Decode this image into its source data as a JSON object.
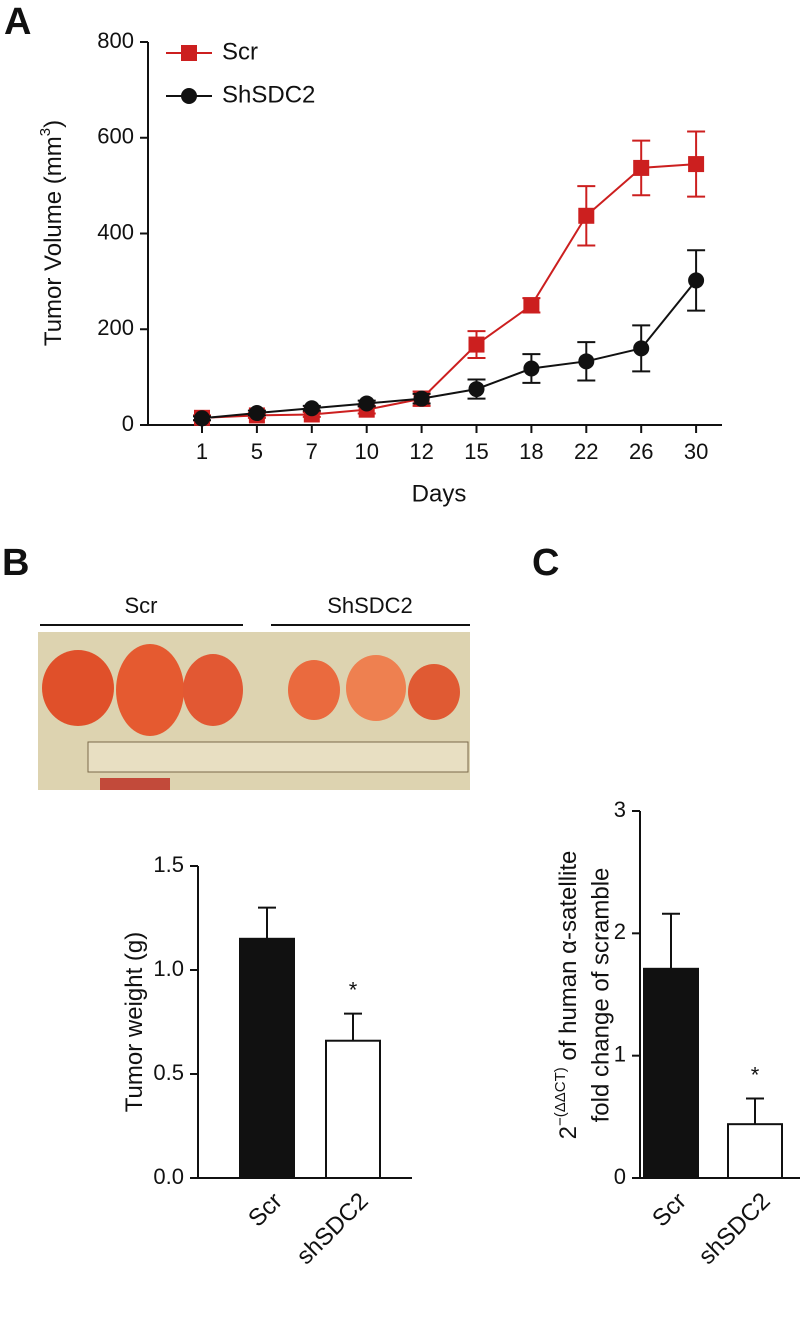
{
  "panel_labels": [
    "A",
    "B",
    "C"
  ],
  "photo": {
    "labels": [
      "Scr",
      "ShSDC2"
    ]
  },
  "chart_data": [
    {
      "type": "line",
      "ylabel": [
        "Tumor Volume (mm",
        "3",
        ")"
      ],
      "xlabel": "Days",
      "categories": [
        "1",
        "5",
        "7",
        "10",
        "12",
        "15",
        "18",
        "22",
        "26",
        "30"
      ],
      "ylim": [
        0,
        800
      ],
      "yticks": [
        0,
        200,
        400,
        600,
        800
      ],
      "grid": false,
      "series": [
        {
          "name": "Scr",
          "color": "#cc1f1f",
          "marker": "square",
          "values": [
            15,
            20,
            22,
            32,
            55,
            168,
            250,
            437,
            537,
            545
          ],
          "errors": [
            5,
            5,
            5,
            8,
            15,
            28,
            15,
            62,
            57,
            68
          ]
        },
        {
          "name": "ShSDC2",
          "color": "#111111",
          "marker": "circle",
          "values": [
            14,
            25,
            35,
            45,
            55,
            75,
            118,
            133,
            160,
            302
          ],
          "errors": [
            4,
            5,
            5,
            6,
            10,
            20,
            30,
            40,
            48,
            63
          ]
        }
      ]
    },
    {
      "type": "bar",
      "ylabel": [
        "Tumor weight (g)"
      ],
      "categories": [
        "Scr",
        "shSDC2"
      ],
      "values": [
        1.15,
        0.66
      ],
      "errors": [
        0.15,
        0.13
      ],
      "colors": [
        "#111111",
        "#ffffff"
      ],
      "annotation": "*",
      "ylim": [
        0,
        1.5
      ],
      "yticks": [
        {
          "value": 0,
          "label": "0.0"
        },
        0.5,
        {
          "value": 1,
          "label": "1.0"
        },
        1.5
      ],
      "grid": false
    },
    {
      "type": "bar",
      "ylabel": [
        "2",
        "−(ΔΔCT)",
        " of human α-satellite"
      ],
      "ylabel_line2": "fold change of scramble",
      "categories": [
        "Scr",
        "shSDC2"
      ],
      "values": [
        1.71,
        0.44
      ],
      "errors": [
        0.45,
        0.21
      ],
      "colors": [
        "#111111",
        "#ffffff"
      ],
      "annotation": "*",
      "ylim": [
        0,
        3
      ],
      "yticks": [
        0,
        1,
        2,
        3
      ],
      "grid": false
    }
  ]
}
